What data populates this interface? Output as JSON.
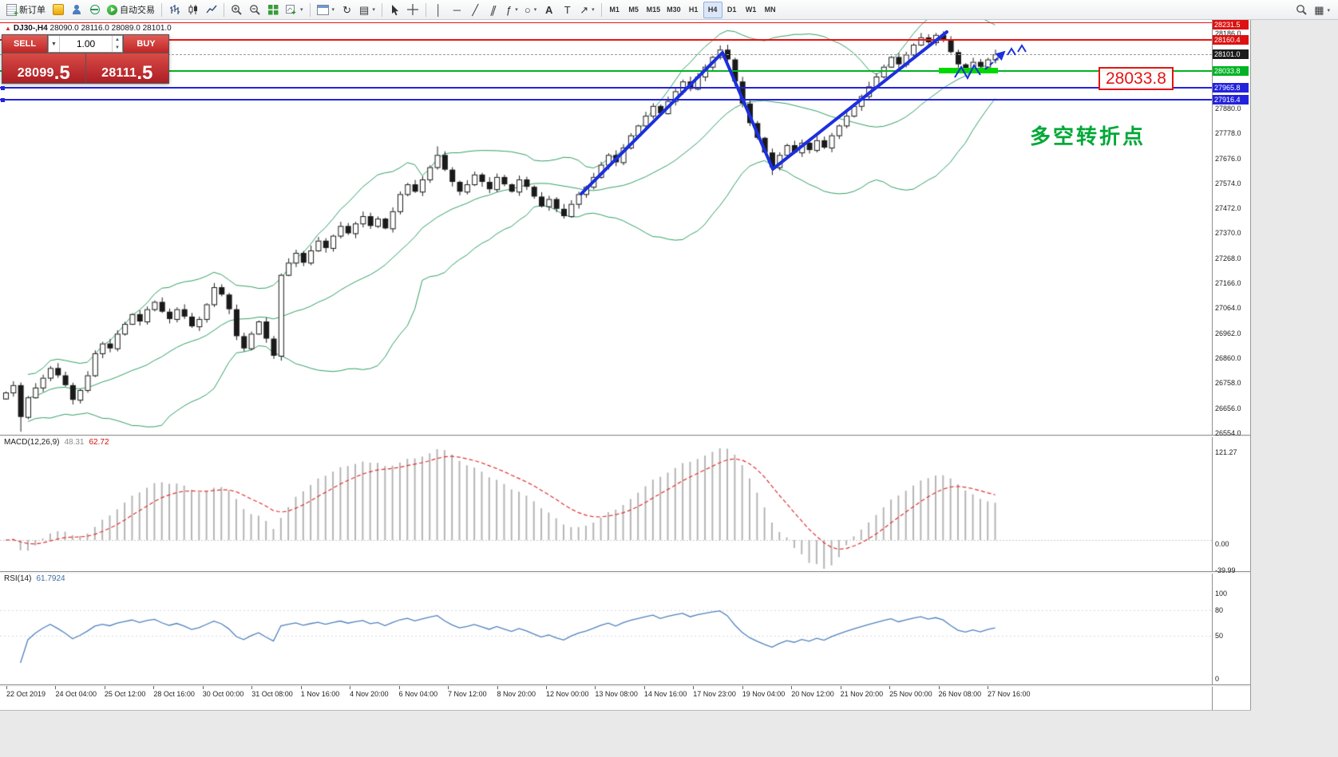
{
  "toolbar": {
    "new_order_label": "新订单",
    "auto_trading_label": "自动交易",
    "timeframes": [
      "M1",
      "M5",
      "M15",
      "M30",
      "H1",
      "H4",
      "D1",
      "W1",
      "MN"
    ],
    "active_timeframe": "H4"
  },
  "chart_header": {
    "symbol_period": "DJ30-,H4",
    "open": "28090.0",
    "high": "28116.0",
    "low": "28089.0",
    "close": "28101.0"
  },
  "one_click": {
    "sell_label": "SELL",
    "buy_label": "BUY",
    "lot": "1.00",
    "sell_price_main": "28099",
    "sell_price_frac": ".5",
    "buy_price_main": "28111",
    "buy_price_frac": ".5"
  },
  "annotations": {
    "price_callout": "28033.8",
    "turning_point_text": "多空转折点",
    "zone_color": "#00d900",
    "trend_color": "#1c2fe0"
  },
  "price_axis": {
    "plain_labels": [
      28186.0,
      27880.0,
      27778.0,
      27676.0,
      27574.0,
      27472.0,
      27370.0,
      27268.0,
      27166.0,
      27064.0,
      26962.0,
      26860.0,
      26758.0,
      26656.0,
      26554.0
    ],
    "tags": [
      {
        "label": "28231.5",
        "price": 28231.5,
        "bg": "#dd1111"
      },
      {
        "label": "28160.4",
        "price": 28160.4,
        "bg": "#dd1111"
      },
      {
        "label": "28101.0",
        "price": 28101.0,
        "bg": "#1c1c1c"
      },
      {
        "label": "28033.8",
        "price": 28033.8,
        "bg": "#00b322"
      },
      {
        "label": "27965.8",
        "price": 27965.8,
        "bg": "#2222dd"
      },
      {
        "label": "27916.4",
        "price": 27916.4,
        "bg": "#2222dd"
      }
    ]
  },
  "hlines": [
    {
      "price": 28231.5,
      "color": "#ee1111",
      "style": "solid",
      "width": 1,
      "handles": false
    },
    {
      "price": 28160.4,
      "color": "#ee1111",
      "style": "solid",
      "width": 2,
      "handles": false
    },
    {
      "price": 28101.0,
      "color": "#9a9a9a",
      "style": "dashed",
      "width": 1,
      "handles": false
    },
    {
      "price": 28033.8,
      "color": "#00b322",
      "style": "solid",
      "width": 2,
      "handles": false
    },
    {
      "price": 27965.8,
      "color": "#2222dd",
      "style": "solid",
      "width": 2,
      "handles": true
    },
    {
      "price": 27916.4,
      "color": "#2222dd",
      "style": "solid",
      "width": 2,
      "handles": true
    }
  ],
  "macd": {
    "label": "MACD(12,26,9)",
    "value_main": "48.31",
    "value_signal": "62.72",
    "axis_labels": [
      "121.27",
      "0.00",
      "-39.99"
    ]
  },
  "rsi": {
    "label": "RSI(14)",
    "value": "61.7924",
    "axis_labels": [
      "100",
      "80",
      "50",
      "0"
    ]
  },
  "time_axis": {
    "labels": [
      "22 Oct 2019",
      "24 Oct 04:00",
      "25 Oct 12:00",
      "28 Oct 16:00",
      "30 Oct 00:00",
      "31 Oct 08:00",
      "1 Nov 16:00",
      "4 Nov 20:00",
      "6 Nov 04:00",
      "7 Nov 12:00",
      "8 Nov 20:00",
      "12 Nov 00:00",
      "13 Nov 08:00",
      "14 Nov 16:00",
      "17 Nov 23:00",
      "19 Nov 04:00",
      "20 Nov 12:00",
      "21 Nov 20:00",
      "25 Nov 00:00",
      "26 Nov 08:00",
      "27 Nov 16:00"
    ]
  },
  "chart_data": {
    "type": "candlestick",
    "symbol": "DJ30",
    "timeframe": "H4",
    "price_range": {
      "top": 28231.5,
      "bottom": 26554.0
    },
    "bollinger": {
      "period": 20,
      "deviation": 2
    },
    "closes": [
      26720,
      26750,
      26620,
      26700,
      26740,
      26780,
      26820,
      26790,
      26750,
      26690,
      26730,
      26790,
      26880,
      26920,
      26900,
      26960,
      27000,
      27040,
      27010,
      27060,
      27090,
      27050,
      27020,
      27060,
      27030,
      26990,
      27020,
      27080,
      27150,
      27120,
      27060,
      26950,
      26900,
      26960,
      27010,
      26940,
      26870,
      27200,
      27250,
      27290,
      27250,
      27300,
      27340,
      27310,
      27360,
      27400,
      27370,
      27410,
      27440,
      27400,
      27430,
      27390,
      27460,
      27530,
      27570,
      27540,
      27590,
      27640,
      27690,
      27630,
      27580,
      27540,
      27570,
      27610,
      27580,
      27550,
      27600,
      27570,
      27540,
      27590,
      27560,
      27520,
      27480,
      27510,
      27470,
      27440,
      27490,
      27530,
      27560,
      27600,
      27650,
      27690,
      27660,
      27720,
      27770,
      27810,
      27850,
      27890,
      27860,
      27910,
      27950,
      27990,
      27960,
      28010,
      28050,
      28090,
      28120,
      28080,
      27990,
      27900,
      27820,
      27760,
      27700,
      27640,
      27690,
      27730,
      27700,
      27740,
      27710,
      27750,
      27720,
      27770,
      27810,
      27850,
      27890,
      27930,
      27970,
      28010,
      28050,
      28090,
      28060,
      28100,
      28140,
      28170,
      28150,
      28180,
      28160,
      28110,
      28060,
      28040,
      28070,
      28050,
      28080,
      28101
    ],
    "wick_overrides": {
      "2": {
        "low": 26560
      },
      "37": {
        "low": 26850
      },
      "58": {
        "high": 27725
      },
      "97": {
        "high": 28140
      },
      "103": {
        "low": 27608
      },
      "126": {
        "high": 28195
      }
    }
  }
}
